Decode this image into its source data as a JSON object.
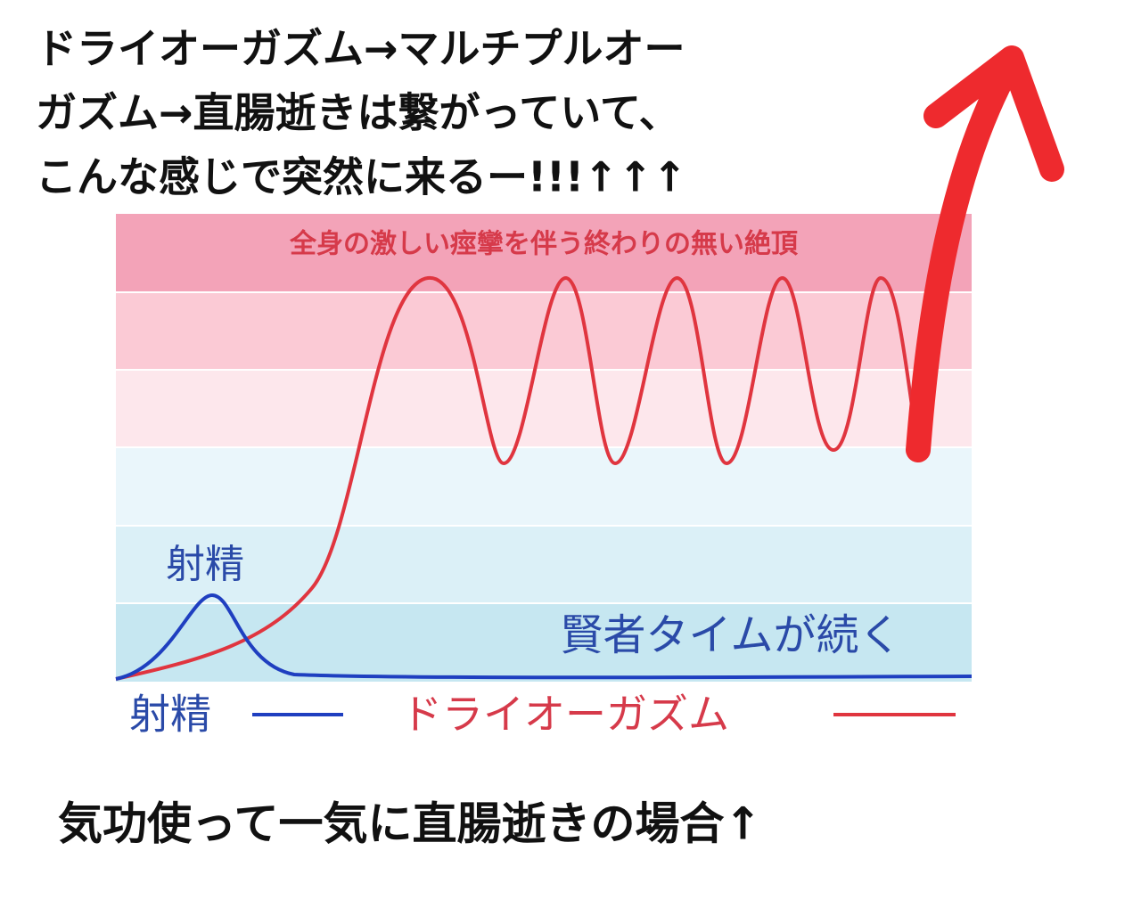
{
  "header": {
    "lines": [
      "ドライオーガズム→マルチプルオー",
      "ガズム→直腸逝きは繋がっていて、",
      "こんな感じで突然に来るー!!!↑↑↑"
    ]
  },
  "chart": {
    "band_label": "全身の激しい痙攣を伴う終わりの無い絶頂",
    "peak_label": "射精",
    "after_label": "賢者タイムが続く",
    "legend": [
      "射精",
      "ドライオーガズム"
    ]
  },
  "footer": {
    "text": "気功使って一気に直腸逝きの場合↑"
  }
}
